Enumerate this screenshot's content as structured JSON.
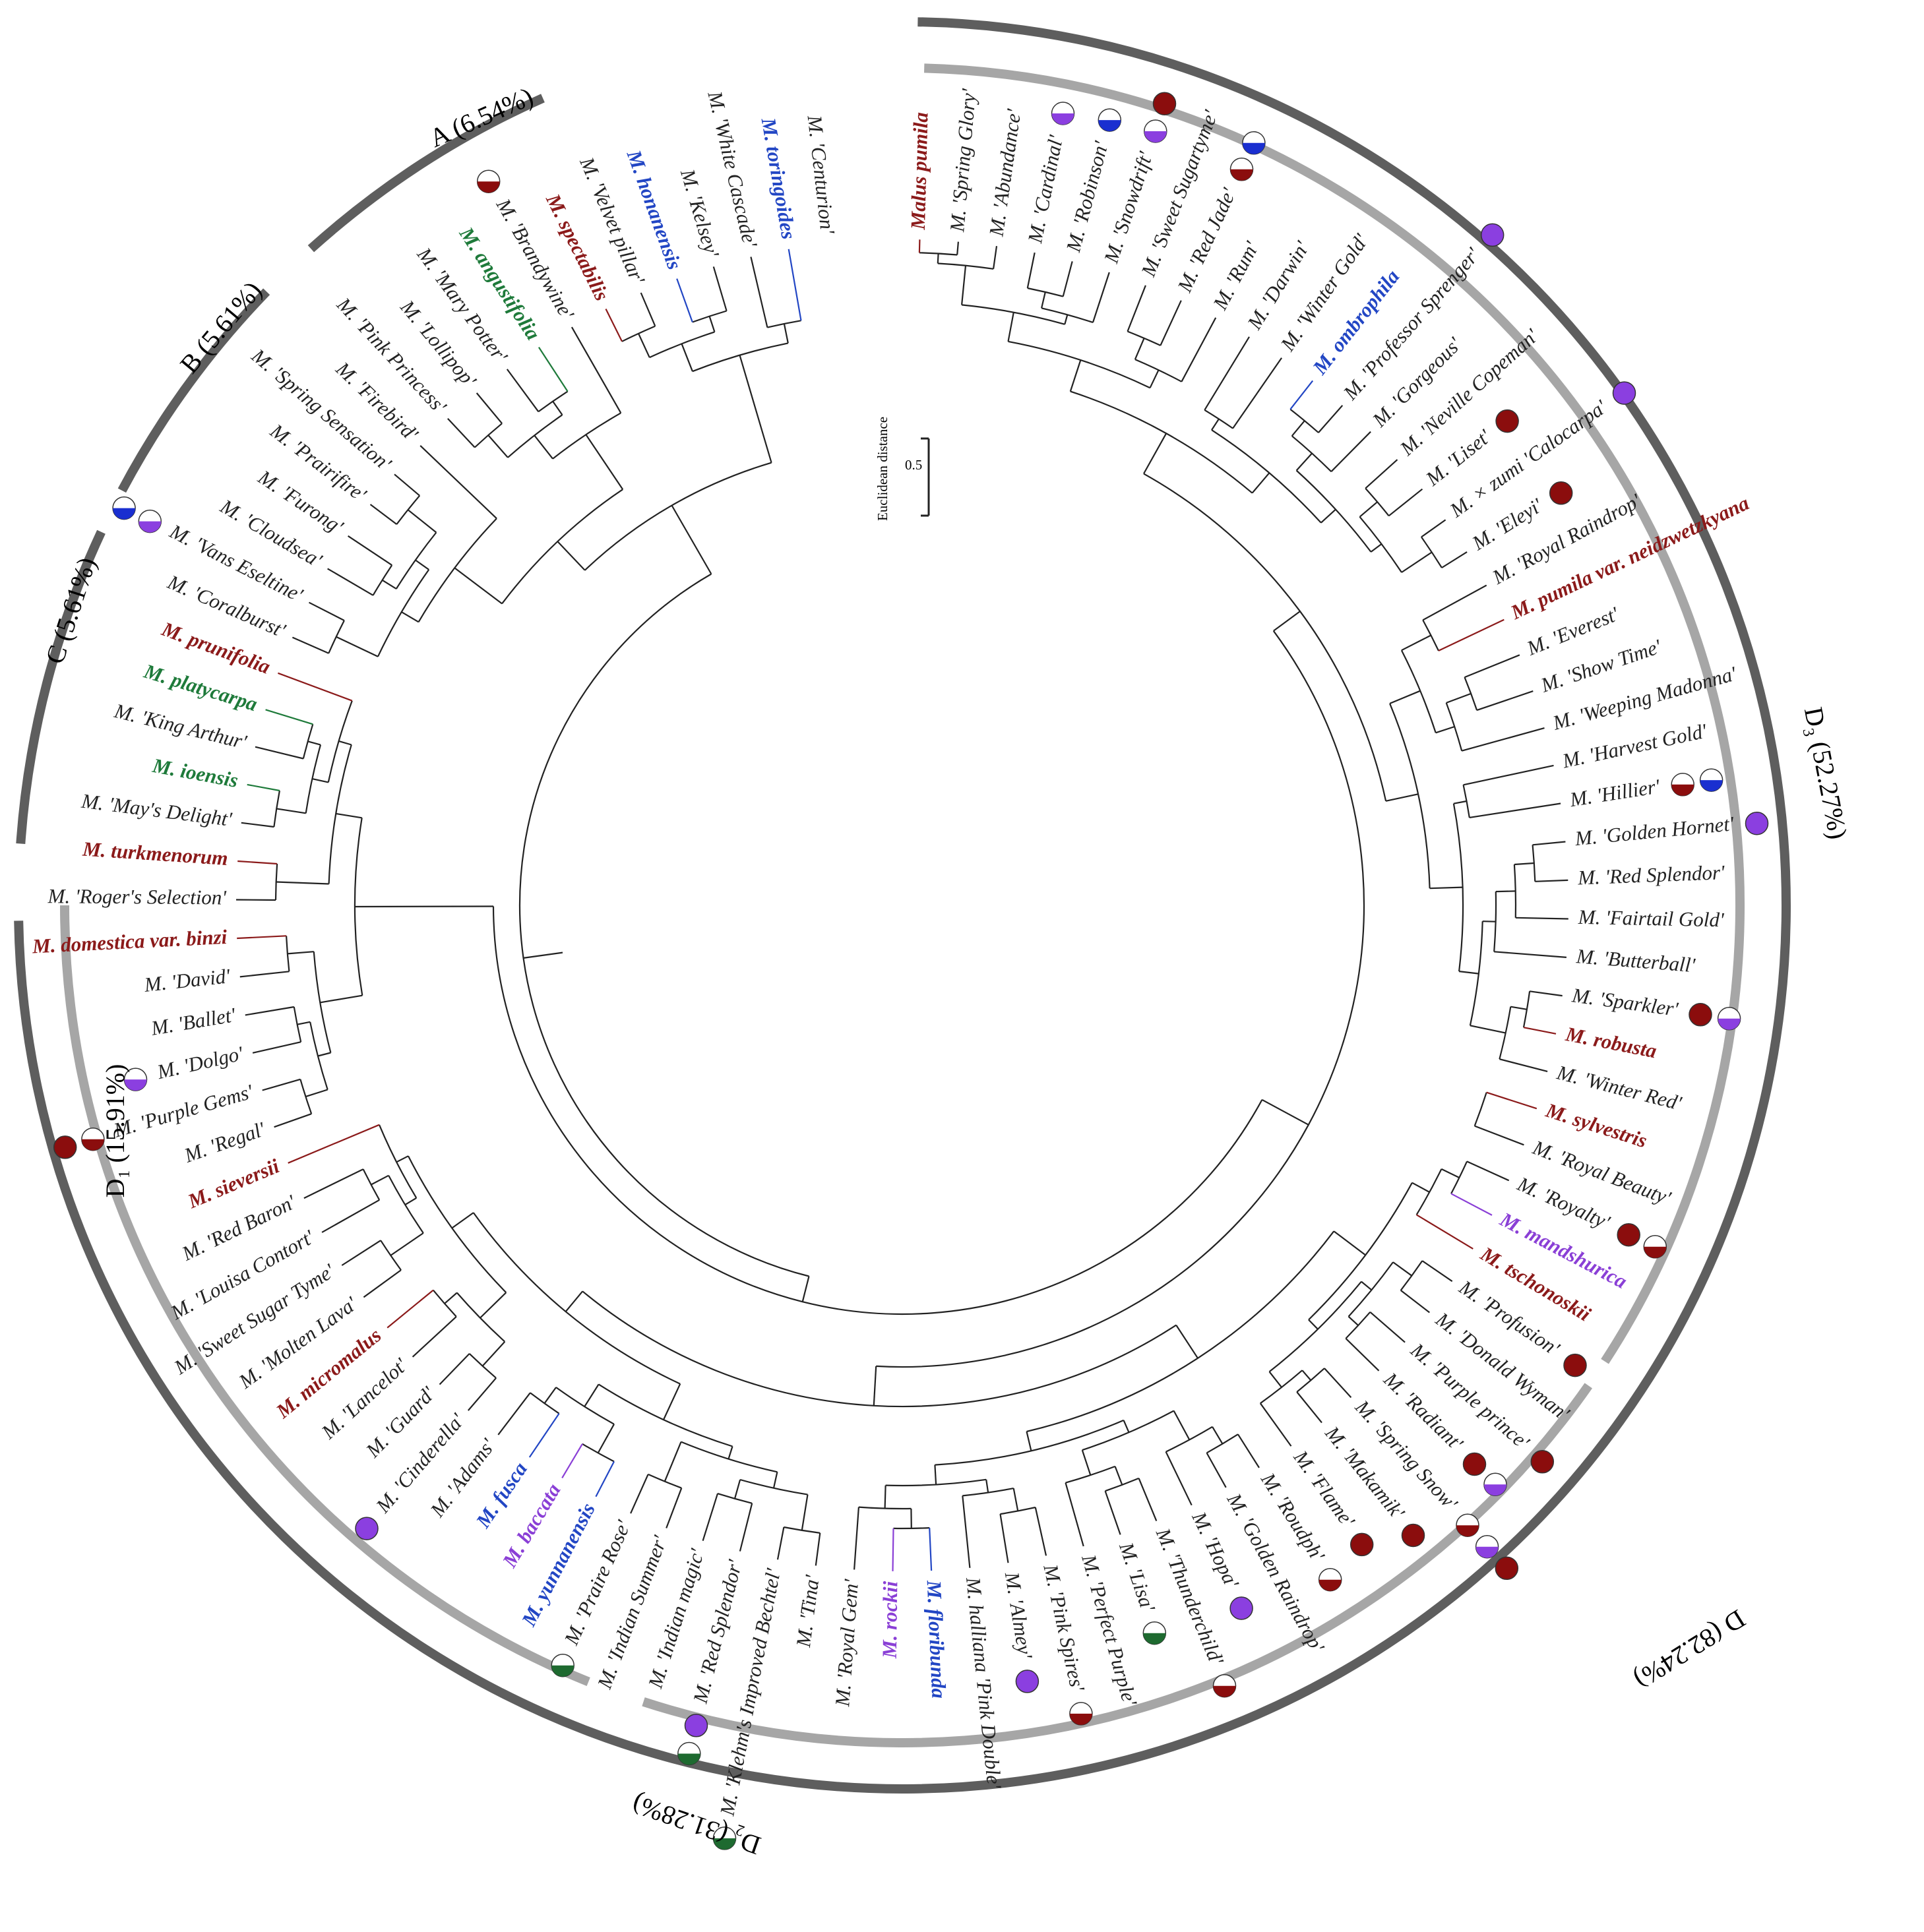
{
  "colors": {
    "black": "#222222",
    "red": "#8b1a1a",
    "blue": "#2246c4",
    "green": "#1e7a3a",
    "purple": "#8a3fd6",
    "arc_dark": "#5e5e5e",
    "arc_light": "#a6a6a6",
    "dot_red": "#8b0d0d",
    "dot_purple": "#8b3fe0",
    "dot_blue": "#1a2fd0",
    "dot_green": "#1e6a30"
  },
  "scale_bar": {
    "title": "Euclidean distance",
    "value_label": "0.5"
  },
  "clades": [
    {
      "id": "A",
      "label": "A  (6.54%)"
    },
    {
      "id": "B",
      "label": "B  (5.61%)"
    },
    {
      "id": "C",
      "label": "C  (5.61%)"
    },
    {
      "id": "D1",
      "label": "D₁  (15.91%)"
    },
    {
      "id": "D2",
      "label": "D₂  (31.28%)"
    },
    {
      "id": "D3",
      "label": "D₃  (52.27%)"
    },
    {
      "id": "D",
      "label": "D  (82.24%)"
    }
  ],
  "leaves": [
    {
      "text": "Malus pumila",
      "color": "red",
      "bold": true,
      "italic": true
    },
    {
      "text": "M. 'Spring Glory'",
      "color": "black",
      "bold": false
    },
    {
      "text": "M. 'Abundance'",
      "color": "black",
      "bold": false
    },
    {
      "text": "M. 'Cardinal'",
      "color": "black",
      "bold": false,
      "markers": [
        "half-purple"
      ]
    },
    {
      "text": "M. 'Robinson'",
      "color": "black",
      "bold": false,
      "markers": [
        "half-blue"
      ]
    },
    {
      "text": "M. 'Snowdrift'",
      "color": "black",
      "bold": false,
      "markers": [
        "half-purple",
        "full-red"
      ]
    },
    {
      "text": "M. 'Sweet Sugartyme'",
      "color": "black",
      "bold": false
    },
    {
      "text": "M. 'Red Jade'",
      "color": "black",
      "bold": false,
      "markers": [
        "half-red",
        "half-blue"
      ]
    },
    {
      "text": "M. 'Rum'",
      "color": "black",
      "bold": false
    },
    {
      "text": "M. 'Darwin'",
      "color": "black",
      "bold": false
    },
    {
      "text": "M. 'Winter Gold'",
      "color": "black",
      "bold": false
    },
    {
      "text": "M. ombrophila",
      "color": "blue",
      "bold": true
    },
    {
      "text": "M. 'Professor Sprenger'",
      "color": "black",
      "bold": false,
      "markers": [
        "full-purple"
      ]
    },
    {
      "text": "M. 'Gorgeous'",
      "color": "black",
      "bold": false
    },
    {
      "text": "M. 'Neville Copeman'",
      "color": "black",
      "bold": false
    },
    {
      "text": "M. 'Liset'",
      "color": "black",
      "bold": false,
      "markers": [
        "full-red"
      ]
    },
    {
      "text": "M. × zumi 'Calocarpa'",
      "color": "black",
      "bold": false,
      "markers": [
        "full-purple"
      ]
    },
    {
      "text": "M. 'Eleyi'",
      "color": "black",
      "bold": false,
      "markers": [
        "full-red"
      ]
    },
    {
      "text": "M. 'Royal Raindrop'",
      "color": "black",
      "bold": false
    },
    {
      "text": "M. pumila var. neidzwetzkyana",
      "color": "red",
      "bold": true
    },
    {
      "text": "M. 'Everest'",
      "color": "black",
      "bold": false
    },
    {
      "text": "M. 'Show Time'",
      "color": "black",
      "bold": false
    },
    {
      "text": "M. 'Weeping Madonna'",
      "color": "black",
      "bold": false
    },
    {
      "text": "M. 'Harvest Gold'",
      "color": "black",
      "bold": false
    },
    {
      "text": "M. 'Hillier'",
      "color": "black",
      "bold": false,
      "markers": [
        "half-red",
        "half-blue"
      ]
    },
    {
      "text": "M. 'Golden Hornet'",
      "color": "black",
      "bold": false,
      "markers": [
        "full-purple"
      ]
    },
    {
      "text": "M. 'Red Splendor'",
      "color": "black",
      "bold": false
    },
    {
      "text": "M. 'Fairtail Gold'",
      "color": "black",
      "bold": false
    },
    {
      "text": "M. 'Butterball'",
      "color": "black",
      "bold": false
    },
    {
      "text": "M. 'Sparkler'",
      "color": "black",
      "bold": false,
      "markers": [
        "full-red",
        "half-purple"
      ]
    },
    {
      "text": "M. robusta",
      "color": "red",
      "bold": true
    },
    {
      "text": "M. 'Winter Red'",
      "color": "black",
      "bold": false
    },
    {
      "text": "M. sylvestris",
      "color": "red",
      "bold": true
    },
    {
      "text": "M. 'Royal Beauty'",
      "color": "black",
      "bold": false
    },
    {
      "text": "M. 'Royalty'",
      "color": "black",
      "bold": false,
      "markers": [
        "full-red",
        "half-red"
      ]
    },
    {
      "text": "M. mandshurica",
      "color": "purple",
      "bold": true
    },
    {
      "text": "M. tschonoskii",
      "color": "red",
      "bold": true
    },
    {
      "text": "M. 'Profusion'",
      "color": "black",
      "bold": false,
      "markers": [
        "full-red"
      ]
    },
    {
      "text": "M. 'Donald Wyman'",
      "color": "black",
      "bold": false
    },
    {
      "text": "M. 'Purple prince'",
      "color": "black",
      "bold": false,
      "markers": [
        "full-red"
      ]
    },
    {
      "text": "M. 'Radiant'",
      "color": "black",
      "bold": false,
      "markers": [
        "full-red",
        "half-purple"
      ]
    },
    {
      "text": "M. 'Spring Snow'",
      "color": "black",
      "bold": false,
      "markers": [
        "half-red",
        "half-purple",
        "full-red"
      ]
    },
    {
      "text": "M. 'Makamik'",
      "color": "black",
      "bold": false,
      "markers": [
        "full-red"
      ]
    },
    {
      "text": "M. 'Flame'",
      "color": "black",
      "bold": false,
      "markers": [
        "full-red"
      ]
    },
    {
      "text": "M. 'Roudph'",
      "color": "black",
      "bold": false,
      "markers": [
        "half-red"
      ]
    },
    {
      "text": "M. 'Golden Raindrop'",
      "color": "black",
      "bold": false
    },
    {
      "text": "M. 'Hopa'",
      "color": "black",
      "bold": false,
      "markers": [
        "full-purple"
      ]
    },
    {
      "text": "M. 'Thunderchild'",
      "color": "black",
      "bold": false,
      "markers": [
        "half-red"
      ]
    },
    {
      "text": "M. 'Lisa'",
      "color": "black",
      "bold": false,
      "markers": [
        "half-green"
      ]
    },
    {
      "text": "M. 'Perfect Purple'",
      "color": "black",
      "bold": false
    },
    {
      "text": "M. 'Pink Spires'",
      "color": "black",
      "bold": false,
      "markers": [
        "half-red"
      ]
    },
    {
      "text": "M. 'Almey'",
      "color": "black",
      "bold": false,
      "markers": [
        "full-purple"
      ]
    },
    {
      "text": "M. halliana 'Pink Double'",
      "color": "black",
      "bold": false
    },
    {
      "text": "M. floribunda",
      "color": "blue",
      "bold": true
    },
    {
      "text": "M. rockii",
      "color": "purple",
      "bold": true
    },
    {
      "text": "M. 'Royal Gem'",
      "color": "black",
      "bold": false
    },
    {
      "text": "M. 'Tina'",
      "color": "black",
      "bold": false
    },
    {
      "text": "M. 'Klehm's Improved Bechtel'",
      "color": "black",
      "bold": false,
      "markers": [
        "half-green"
      ]
    },
    {
      "text": "M. 'Red Splendor'",
      "color": "black",
      "bold": false,
      "markers": [
        "full-purple",
        "half-green"
      ]
    },
    {
      "text": "M. 'Indian magic'",
      "color": "black",
      "bold": false
    },
    {
      "text": "M. 'Indian Summer'",
      "color": "black",
      "bold": false
    },
    {
      "text": "M. 'Praire Rose'",
      "color": "black",
      "bold": false,
      "markers": [
        "half-green"
      ]
    },
    {
      "text": "M. yunnanensis",
      "color": "blue",
      "bold": true
    },
    {
      "text": "M. baccata",
      "color": "purple",
      "bold": true
    },
    {
      "text": "M. fusca",
      "color": "blue",
      "bold": true
    },
    {
      "text": "M. 'Adams'",
      "color": "black",
      "bold": false
    },
    {
      "text": "M. 'Cinderella'",
      "color": "black",
      "bold": false,
      "markers": [
        "full-purple"
      ]
    },
    {
      "text": "M. 'Guard'",
      "color": "black",
      "bold": false
    },
    {
      "text": "M. 'Lancelot'",
      "color": "black",
      "bold": false
    },
    {
      "text": "M. micromalus",
      "color": "red",
      "bold": true
    },
    {
      "text": "M. 'Molten Lava'",
      "color": "black",
      "bold": false
    },
    {
      "text": "M. 'Sweet Sugar Tyme'",
      "color": "black",
      "bold": false
    },
    {
      "text": "M. 'Louisa Contort'",
      "color": "black",
      "bold": false
    },
    {
      "text": "M. 'Red Baron'",
      "color": "black",
      "bold": false
    },
    {
      "text": "M. sieversii",
      "color": "red",
      "bold": true
    },
    {
      "text": "M. 'Regal'",
      "color": "black",
      "bold": false
    },
    {
      "text": "M. 'Purple Gems'",
      "color": "black",
      "bold": false,
      "markers": [
        "half-red",
        "full-red"
      ]
    },
    {
      "text": "M. 'Dolgo'",
      "color": "black",
      "bold": false,
      "markers": [
        "half-purple"
      ]
    },
    {
      "text": "M. 'Ballet'",
      "color": "black",
      "bold": false
    },
    {
      "text": "M. 'David'",
      "color": "black",
      "bold": false
    },
    {
      "text": "M. domestica var. binzi",
      "color": "red",
      "bold": true
    },
    {
      "text": "M. 'Roger's Selection'",
      "color": "black",
      "bold": false
    },
    {
      "text": "M. turkmenorum",
      "color": "red",
      "bold": true
    },
    {
      "text": "M. 'May's Delight'",
      "color": "black",
      "bold": false
    },
    {
      "text": "M. ioensis",
      "color": "green",
      "bold": true
    },
    {
      "text": "M. 'King Arthur'",
      "color": "black",
      "bold": false
    },
    {
      "text": "M. platycarpa",
      "color": "green",
      "bold": true
    },
    {
      "text": "M. prunifolia",
      "color": "red",
      "bold": true
    },
    {
      "text": "M. 'Coralburst'",
      "color": "black",
      "bold": false
    },
    {
      "text": "M. 'Vans Eseltine'",
      "color": "black",
      "bold": false,
      "markers": [
        "half-purple",
        "half-blue"
      ]
    },
    {
      "text": "M. 'Cloudsea'",
      "color": "black",
      "bold": false
    },
    {
      "text": "M. 'Furong'",
      "color": "black",
      "bold": false
    },
    {
      "text": "M. 'Prairifire'",
      "color": "black",
      "bold": false
    },
    {
      "text": "M. 'Spring Sensation'",
      "color": "black",
      "bold": false
    },
    {
      "text": "M. 'Firebird'",
      "color": "black",
      "bold": false
    },
    {
      "text": "M. 'Pink Princess'",
      "color": "black",
      "bold": false
    },
    {
      "text": "M. 'Lollipop'",
      "color": "black",
      "bold": false
    },
    {
      "text": "M. 'Mary Potter'",
      "color": "black",
      "bold": false
    },
    {
      "text": "M. angustifolia",
      "color": "green",
      "bold": true
    },
    {
      "text": "M. 'Brandywine'",
      "color": "black",
      "bold": false,
      "markers": [
        "half-red"
      ]
    },
    {
      "text": "M. spectabilis",
      "color": "red",
      "bold": true
    },
    {
      "text": "M. 'Velvet pillar'",
      "color": "black",
      "bold": false
    },
    {
      "text": "M. honanensis",
      "color": "blue",
      "bold": true
    },
    {
      "text": "M. 'Kelsey'",
      "color": "black",
      "bold": false
    },
    {
      "text": "M. 'White Cascade'",
      "color": "black",
      "bold": false
    },
    {
      "text": "M. toringoides",
      "color": "blue",
      "bold": true
    },
    {
      "text": "M. 'Centurion'",
      "color": "black",
      "bold": false
    }
  ]
}
